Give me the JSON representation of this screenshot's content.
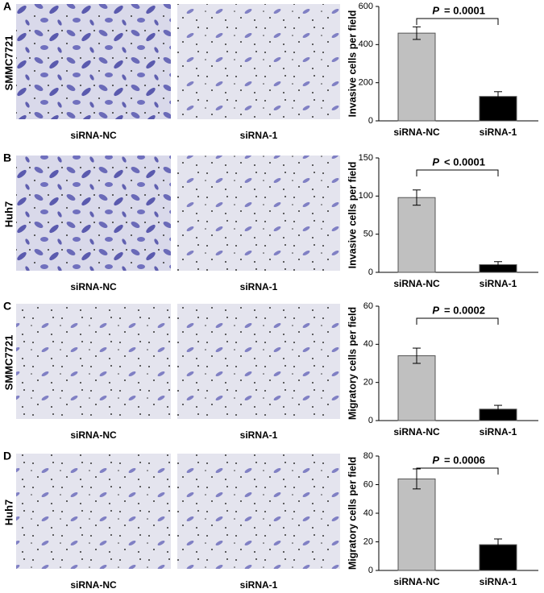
{
  "chart_data": [
    {
      "type": "bar",
      "panel": "A",
      "cell_line": "SMMC7721",
      "image_captions": [
        "siRNA-NC",
        "siRNA-1"
      ],
      "ylabel": "Invasive cells per field",
      "categories": [
        "siRNA-NC",
        "siRNA-1"
      ],
      "values": [
        460,
        128
      ],
      "errors": [
        33,
        25
      ],
      "colors": [
        "#c0c0c0",
        "#000000"
      ],
      "ylim": [
        0,
        600
      ],
      "yticks": [
        0,
        200,
        400,
        600
      ],
      "annotation": {
        "label": "P",
        "text": "= 0.0001"
      }
    },
    {
      "type": "bar",
      "panel": "B",
      "cell_line": "Huh7",
      "image_captions": [
        "siRNA-NC",
        "siRNA-1"
      ],
      "ylabel": "Invasive cells per field",
      "categories": [
        "siRNA-NC",
        "siRNA-1"
      ],
      "values": [
        98,
        10
      ],
      "errors": [
        10,
        4
      ],
      "colors": [
        "#c0c0c0",
        "#000000"
      ],
      "ylim": [
        0,
        150
      ],
      "yticks": [
        0,
        50,
        100,
        150
      ],
      "annotation": {
        "label": "P",
        "text": "< 0.0001"
      }
    },
    {
      "type": "bar",
      "panel": "C",
      "cell_line": "SMMC7721",
      "image_captions": [
        "siRNA-NC",
        "siRNA-1"
      ],
      "ylabel": "Migratory cells per field",
      "categories": [
        "siRNA-NC",
        "siRNA-1"
      ],
      "values": [
        34,
        6
      ],
      "errors": [
        4,
        2
      ],
      "colors": [
        "#c0c0c0",
        "#000000"
      ],
      "ylim": [
        0,
        60
      ],
      "yticks": [
        0,
        20,
        40,
        60
      ],
      "annotation": {
        "label": "P",
        "text": "= 0.0002"
      }
    },
    {
      "type": "bar",
      "panel": "D",
      "cell_line": "Huh7",
      "image_captions": [
        "siRNA-NC",
        "siRNA-1"
      ],
      "ylabel": "Migratory cells per field",
      "categories": [
        "siRNA-NC",
        "siRNA-1"
      ],
      "values": [
        64,
        18
      ],
      "errors": [
        7,
        4
      ],
      "colors": [
        "#c0c0c0",
        "#000000"
      ],
      "ylim": [
        0,
        80
      ],
      "yticks": [
        0,
        20,
        40,
        60,
        80
      ],
      "annotation": {
        "label": "P",
        "text": "= 0.0006"
      }
    }
  ]
}
